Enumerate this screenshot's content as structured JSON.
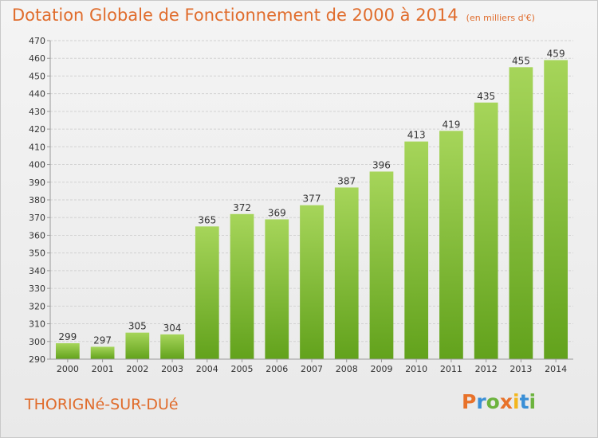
{
  "header": {
    "title": "Dotation Globale de Fonctionnement de 2000 à 2014",
    "unit": "(en milliers d'€)"
  },
  "footer": {
    "place": "THORIGNé-SUR-DUé",
    "brand": "Proxiti",
    "brand_letters": [
      "P",
      "r",
      "o",
      "x",
      "i",
      "t",
      "i"
    ],
    "brand_colors": [
      "#e8722a",
      "#3a8fd6",
      "#6cb33e",
      "#e8722a",
      "#f3b61c",
      "#3a8fd6",
      "#6cb33e"
    ]
  },
  "chart_data": {
    "type": "bar",
    "title": "Dotation Globale de Fonctionnement de 2000 à 2014",
    "subtitle": "(en milliers d'€)",
    "categories": [
      "2000",
      "2001",
      "2002",
      "2003",
      "2004",
      "2005",
      "2006",
      "2007",
      "2008",
      "2009",
      "2010",
      "2011",
      "2012",
      "2013",
      "2014"
    ],
    "values": [
      299,
      297,
      305,
      304,
      365,
      372,
      369,
      377,
      387,
      396,
      413,
      419,
      435,
      455,
      459
    ],
    "ylim": [
      290,
      470
    ],
    "ytick_step": 10,
    "grid": true,
    "xlabel": "",
    "ylabel": "",
    "colors": {
      "bar_top": "#a6d55a",
      "bar_bottom": "#62a21c",
      "text": "#333333",
      "axis": "#999999"
    }
  }
}
